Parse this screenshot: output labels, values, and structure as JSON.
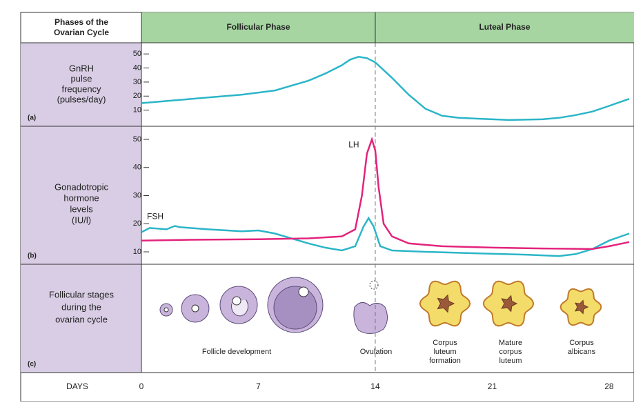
{
  "header": {
    "corner_lines": [
      "Phases of the",
      "Ovarian Cycle"
    ],
    "phases": [
      "Follicular Phase",
      "Luteal Phase"
    ]
  },
  "days": {
    "label": "DAYS",
    "xlim": [
      0,
      29.2
    ],
    "ticks": [
      0,
      7,
      14,
      21,
      28
    ]
  },
  "panels": [
    {
      "tag": "(a)",
      "label_lines": [
        "GnRH",
        "pulse",
        "frequency",
        "(pulses/day)"
      ],
      "ylim": [
        0,
        55
      ],
      "yticks": [
        10,
        20,
        30,
        40,
        50
      ],
      "series": [
        {
          "color": "#2bb5c8",
          "x": [
            0,
            2,
            4,
            6,
            8,
            10,
            11,
            12,
            12.5,
            13,
            13.5,
            14,
            15,
            16,
            17,
            18,
            19,
            20,
            22,
            24,
            25,
            26,
            27,
            28,
            29.2
          ],
          "values": [
            15,
            17,
            19,
            21,
            24,
            31,
            36,
            42,
            46,
            48,
            47,
            44,
            33,
            21,
            11,
            6,
            4.5,
            4,
            3,
            3.5,
            4.5,
            6.5,
            9,
            13,
            18
          ]
        }
      ]
    },
    {
      "tag": "(b)",
      "label_lines": [
        "Gonadotropic",
        "hormone",
        "levels",
        "(IU/l)"
      ],
      "ylim": [
        5,
        54
      ],
      "yticks": [
        10,
        20,
        30,
        40,
        50
      ],
      "series": [
        {
          "name": "FSH",
          "color": "#2bb5c8",
          "x": [
            0,
            0.5,
            1.5,
            2,
            2.3,
            4,
            6,
            7,
            8,
            10,
            11,
            12,
            12.8,
            13.3,
            13.6,
            13.9,
            14.3,
            15,
            17,
            20,
            23,
            25,
            26,
            27,
            28,
            29.2
          ],
          "values": [
            17,
            18.5,
            18,
            19.2,
            18.8,
            18,
            17.3,
            17.6,
            16.5,
            13,
            11.5,
            10.5,
            12,
            19,
            22,
            19,
            12,
            10.5,
            10,
            9.5,
            9,
            8.5,
            9.2,
            11,
            14,
            16.5
          ]
        },
        {
          "name": "LH",
          "color": "#e3237c",
          "x": [
            0,
            3,
            7,
            10,
            12,
            12.8,
            13.2,
            13.5,
            13.8,
            14,
            14.2,
            14.5,
            15,
            16,
            18,
            21,
            24,
            27,
            28,
            29.2
          ],
          "values": [
            14,
            14.3,
            14.5,
            14.8,
            15.5,
            18,
            30,
            45,
            50,
            46,
            33,
            20,
            15.5,
            13,
            12,
            11.5,
            11.2,
            11,
            12,
            13.5
          ]
        }
      ]
    },
    {
      "tag": "(c)",
      "label_lines": [
        "Follicular stages",
        "during the",
        "ovarian cycle"
      ],
      "stages": [
        {
          "label_lines": [
            "Follicle development"
          ]
        },
        {
          "label_lines": [
            "Ovulation"
          ]
        },
        {
          "label_lines": [
            "Corpus",
            "luteum",
            "formation"
          ]
        },
        {
          "label_lines": [
            "Mature",
            "corpus",
            "luteum"
          ]
        },
        {
          "label_lines": [
            "Corpus",
            "albicans"
          ]
        }
      ]
    }
  ]
}
